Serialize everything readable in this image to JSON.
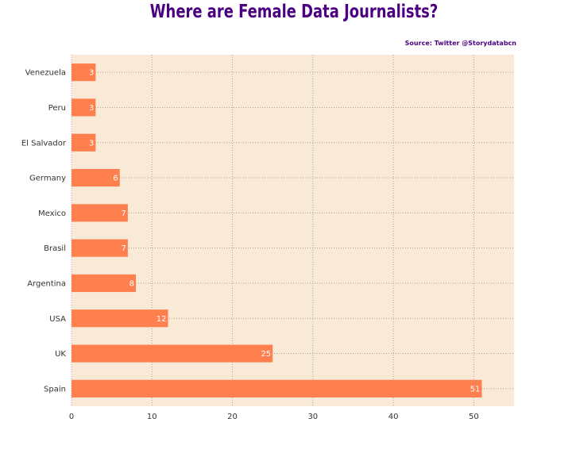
{
  "chart_data": {
    "type": "bar",
    "orientation": "horizontal",
    "title": "Where are Female Data Journalists?",
    "source": "Source: Twitter @Storydatabcn",
    "categories": [
      "Venezuela",
      "Peru",
      "El Salvador",
      "Germany",
      "Mexico",
      "Brasil",
      "Argentina",
      "USA",
      "UK",
      "Spain"
    ],
    "values": [
      3,
      3,
      3,
      6,
      7,
      7,
      8,
      12,
      25,
      51
    ],
    "xlim": [
      0,
      55
    ],
    "xticks": [
      0,
      10,
      20,
      30,
      40,
      50
    ],
    "xlabel": "",
    "ylabel": "",
    "grid": true,
    "colors": {
      "bar": "#ff7f4e",
      "plot_background": "#f8ead6",
      "title": "#4b0082",
      "grid": "#b0a090"
    }
  }
}
